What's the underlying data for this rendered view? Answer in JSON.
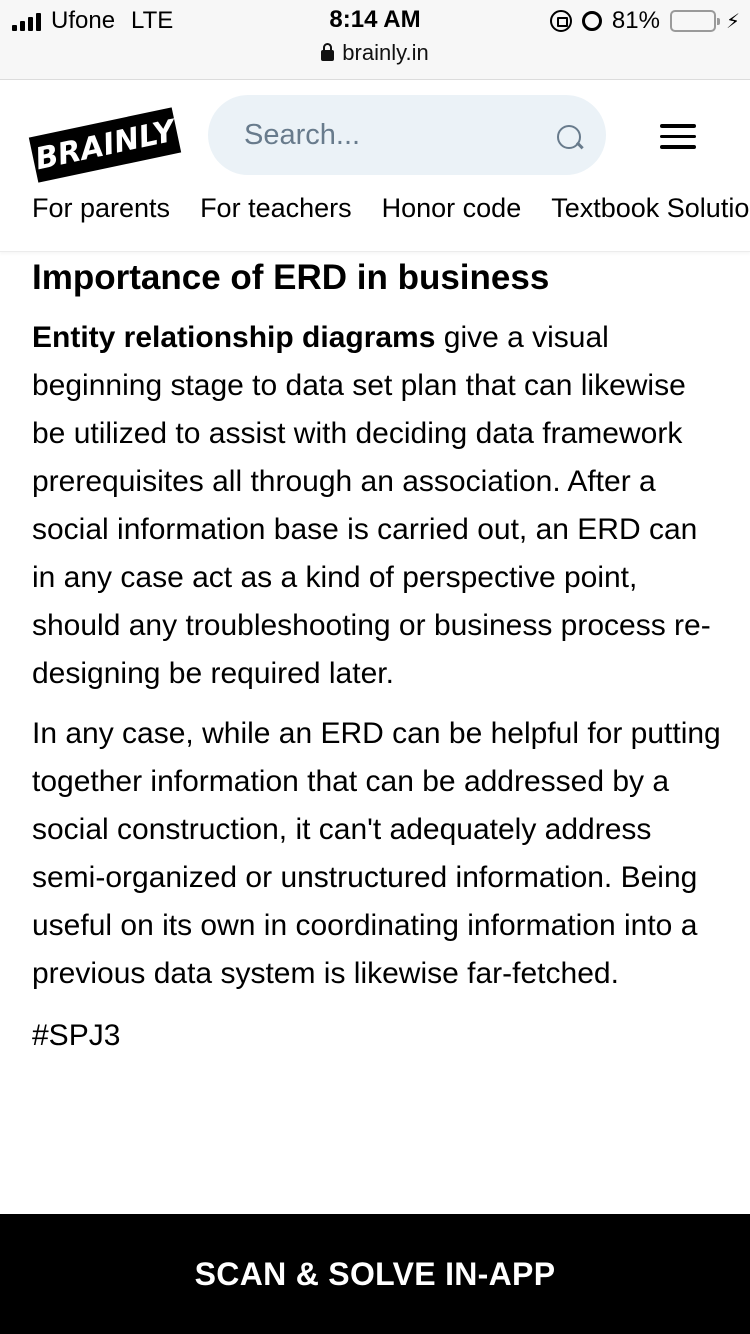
{
  "status_bar": {
    "carrier": "Ufone",
    "network": "LTE",
    "time": "8:14 AM",
    "battery_percent": "81%",
    "battery_level": 0.81,
    "url": "brainly.in"
  },
  "header": {
    "logo_text": "BRAINLY",
    "search_placeholder": "Search...",
    "nav": [
      "For parents",
      "For teachers",
      "Honor code",
      "Textbook Solutions"
    ]
  },
  "article": {
    "heading": "Importance of  ERD in business",
    "p1_bold": "Entity relationship diagrams",
    "p1_rest": " give a visual beginning stage to data set plan that can likewise be utilized to assist with deciding data framework prerequisites all through an association. After a social information base is carried out, an ERD can in any case act as a kind of perspective point, should any troubleshooting or business process re-designing be required later.",
    "p2": "In any case, while an ERD can be helpful for putting together information that can be addressed by a social construction, it can't adequately address semi-organized or unstructured information. Being useful on its own in coordinating information into a previous data system is likewise far-fetched.",
    "hashtag": "#SPJ3"
  },
  "bottom_cta": "SCAN & SOLVE IN-APP",
  "colors": {
    "search_bg": "#ebf2f7",
    "search_text": "#687b8c",
    "battery": "#4cd964",
    "cta_bg": "#000000"
  }
}
